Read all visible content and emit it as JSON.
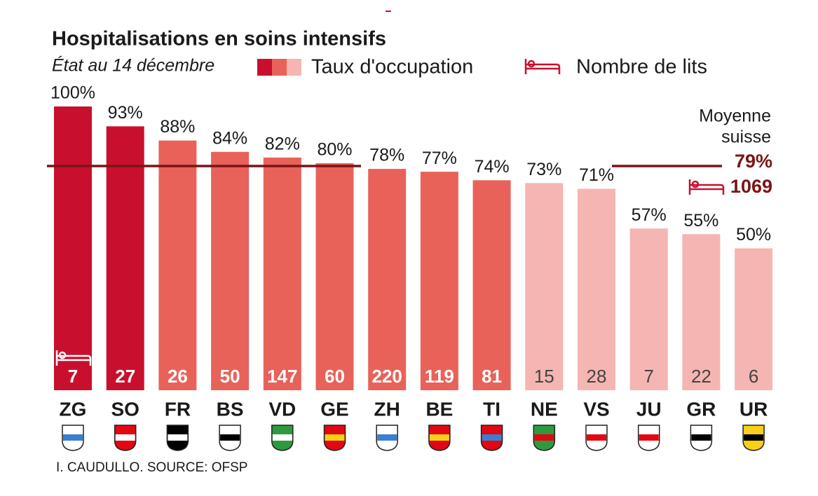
{
  "chart_data": {
    "type": "bar",
    "title": "Hospitalisations en soins intensifs",
    "subtitle": "État au 14 décembre",
    "legend": {
      "occupancy": "Taux d'occupation",
      "beds": "Nombre de lits",
      "palette": [
        "#c8102e",
        "#e8625a",
        "#f5b5b2"
      ]
    },
    "categories": [
      "ZG",
      "SO",
      "FR",
      "BS",
      "VD",
      "GE",
      "ZH",
      "BE",
      "TI",
      "NE",
      "VS",
      "JU",
      "GR",
      "UR"
    ],
    "values": [
      100,
      93,
      88,
      84,
      82,
      80,
      78,
      77,
      74,
      73,
      71,
      57,
      55,
      50
    ],
    "value_labels": [
      "100%",
      "93%",
      "88%",
      "84%",
      "82%",
      "80%",
      "78%",
      "77%",
      "74%",
      "73%",
      "71%",
      "57%",
      "55%",
      "50%"
    ],
    "beds": [
      7,
      27,
      26,
      50,
      147,
      60,
      220,
      119,
      81,
      15,
      28,
      7,
      22,
      6
    ],
    "colors": [
      "#c8102e",
      "#c8102e",
      "#e8625a",
      "#e8625a",
      "#e8625a",
      "#e8625a",
      "#e8625a",
      "#e8625a",
      "#e8625a",
      "#f5b5b2",
      "#f5b5b2",
      "#f5b5b2",
      "#f5b5b2",
      "#f5b5b2"
    ],
    "ylim": [
      0,
      100
    ],
    "average": {
      "label": [
        "Moyenne",
        "suisse"
      ],
      "value": 79,
      "value_label": "79%",
      "beds": 1069,
      "color": "#7a1416"
    },
    "source": "I. CAUDULLO. SOURCE: OFSP"
  }
}
